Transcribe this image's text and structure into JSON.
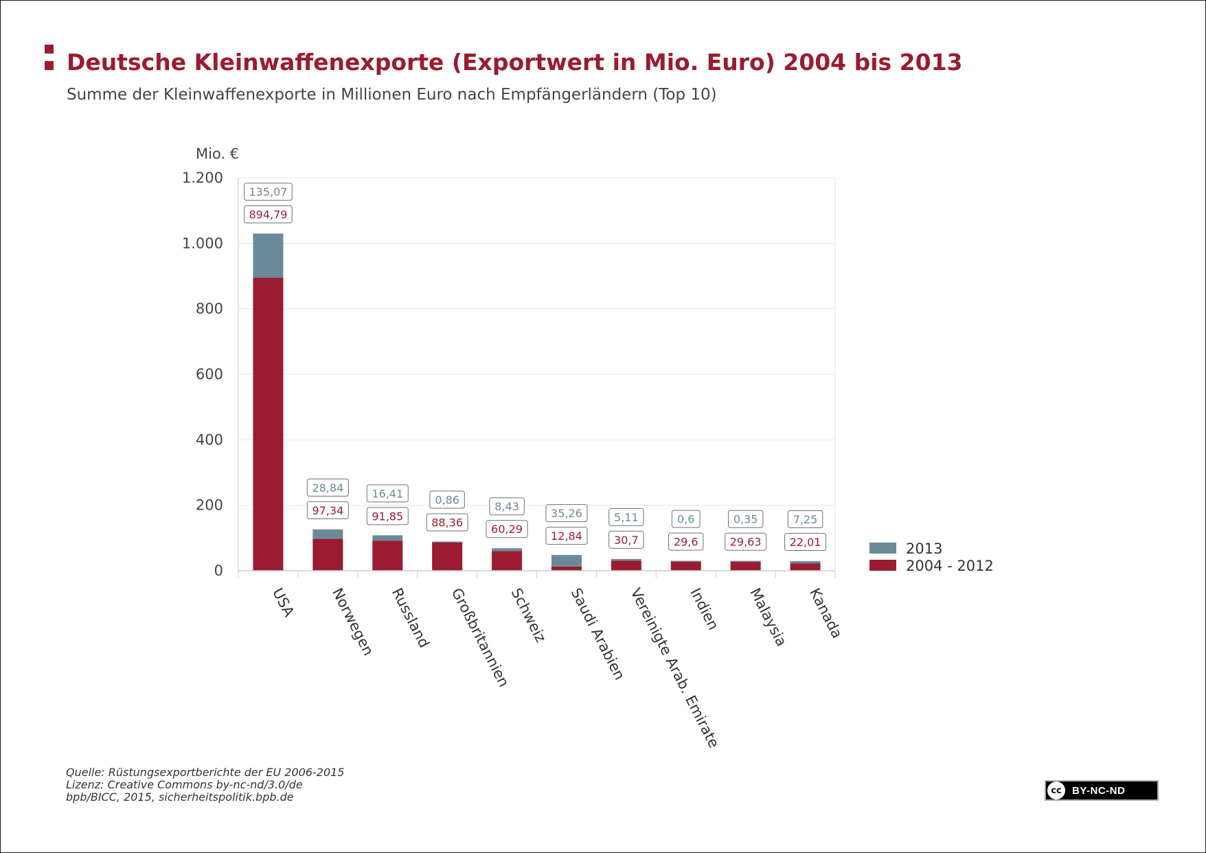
{
  "header": {
    "title": "Deutsche Kleinwaffenexporte (Exportwert in Mio. Euro) 2004 bis 2013",
    "subtitle": "Summe der Kleinwaffenexporte in Millionen Euro nach Empfängerländern (Top 10)"
  },
  "footer": {
    "source": "Quelle: Rüstungsexportberichte der EU 2006-2015",
    "license": "Lizenz: Creative Commons by-nc-nd/3.0/de",
    "credit": "bpb/BICC, 2015, sicherheitspolitik.bpb.de",
    "badge_icon": "cc",
    "badge_text": "BY-NC-ND"
  },
  "colors": {
    "title": "#9b1b30",
    "series_2004_2012": "#9b1b30",
    "series_2013": "#6b8a99"
  },
  "chart_data": {
    "type": "bar",
    "stacked": true,
    "title": "Deutsche Kleinwaffenexporte (Exportwert in Mio. Euro) 2004 bis 2013",
    "subtitle": "Summe der Kleinwaffenexporte in Millionen Euro nach Empfängerländern (Top 10)",
    "ylabel": "Mio. €",
    "xlabel": "",
    "ylim": [
      0,
      1200
    ],
    "yticks": [
      0,
      200,
      400,
      600,
      800,
      1000,
      1200
    ],
    "ytick_labels": [
      "0",
      "200",
      "400",
      "600",
      "800",
      "1.000",
      "1.200"
    ],
    "grid": true,
    "legend_position": "right",
    "categories": [
      "USA",
      "Norwegen",
      "Russland",
      "Großbritannien",
      "Schweiz",
      "Saudi Arabien",
      "Vereinigte Arab. Emirate",
      "Indien",
      "Malaysia",
      "Kanada"
    ],
    "series": [
      {
        "name": "2004 - 2012",
        "color": "#9b1b30",
        "values": [
          894.79,
          97.34,
          91.85,
          88.36,
          60.29,
          12.84,
          30.7,
          29.6,
          29.63,
          22.01
        ],
        "labels": [
          "894,79",
          "97,34",
          "91,85",
          "88,36",
          "60,29",
          "12,84",
          "30,7",
          "29,6",
          "29,63",
          "22,01"
        ]
      },
      {
        "name": "2013",
        "color": "#6b8a99",
        "values": [
          135.07,
          28.84,
          16.41,
          0.86,
          8.43,
          35.26,
          5.11,
          0.6,
          0.35,
          7.25
        ],
        "labels": [
          "135,07",
          "28,84",
          "16,41",
          "0,86",
          "8,43",
          "35,26",
          "5,11",
          "0,6",
          "0,35",
          "7,25"
        ]
      }
    ]
  }
}
